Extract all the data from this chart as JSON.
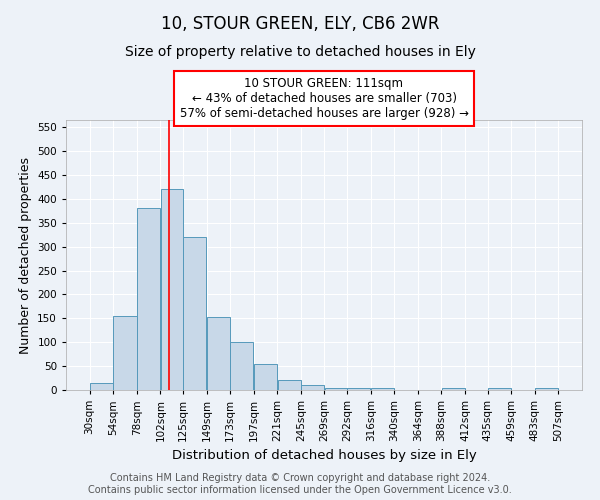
{
  "title1": "10, STOUR GREEN, ELY, CB6 2WR",
  "title2": "Size of property relative to detached houses in Ely",
  "xlabel": "Distribution of detached houses by size in Ely",
  "ylabel": "Number of detached properties",
  "bar_color": "#c8d8e8",
  "bar_edge_color": "#5599bb",
  "bg_color": "#edf2f8",
  "grid_color": "white",
  "vline_x": 111,
  "vline_color": "red",
  "annotation_text": "10 STOUR GREEN: 111sqm\n← 43% of detached houses are smaller (703)\n57% of semi-detached houses are larger (928) →",
  "annotation_box_color": "white",
  "annotation_box_edge_color": "red",
  "ylim": [
    0,
    565
  ],
  "yticks": [
    0,
    50,
    100,
    150,
    200,
    250,
    300,
    350,
    400,
    450,
    500,
    550
  ],
  "bin_edges": [
    6,
    30,
    54,
    78,
    102,
    125,
    149,
    173,
    197,
    221,
    245,
    269,
    292,
    316,
    340,
    364,
    388,
    412,
    435,
    459,
    483,
    507,
    531
  ],
  "bar_heights": [
    0,
    15,
    155,
    380,
    420,
    320,
    152,
    100,
    55,
    20,
    10,
    5,
    5,
    5,
    0,
    0,
    5,
    0,
    5,
    0,
    5,
    0
  ],
  "xtick_labels": [
    "30sqm",
    "54sqm",
    "78sqm",
    "102sqm",
    "125sqm",
    "149sqm",
    "173sqm",
    "197sqm",
    "221sqm",
    "245sqm",
    "269sqm",
    "292sqm",
    "316sqm",
    "340sqm",
    "364sqm",
    "388sqm",
    "412sqm",
    "435sqm",
    "459sqm",
    "483sqm",
    "507sqm"
  ],
  "footer_text": "Contains HM Land Registry data © Crown copyright and database right 2024.\nContains public sector information licensed under the Open Government Licence v3.0.",
  "title1_fontsize": 12,
  "title2_fontsize": 10,
  "xlabel_fontsize": 9.5,
  "ylabel_fontsize": 9,
  "tick_fontsize": 7.5,
  "footer_fontsize": 7,
  "annotation_fontsize": 8.5
}
